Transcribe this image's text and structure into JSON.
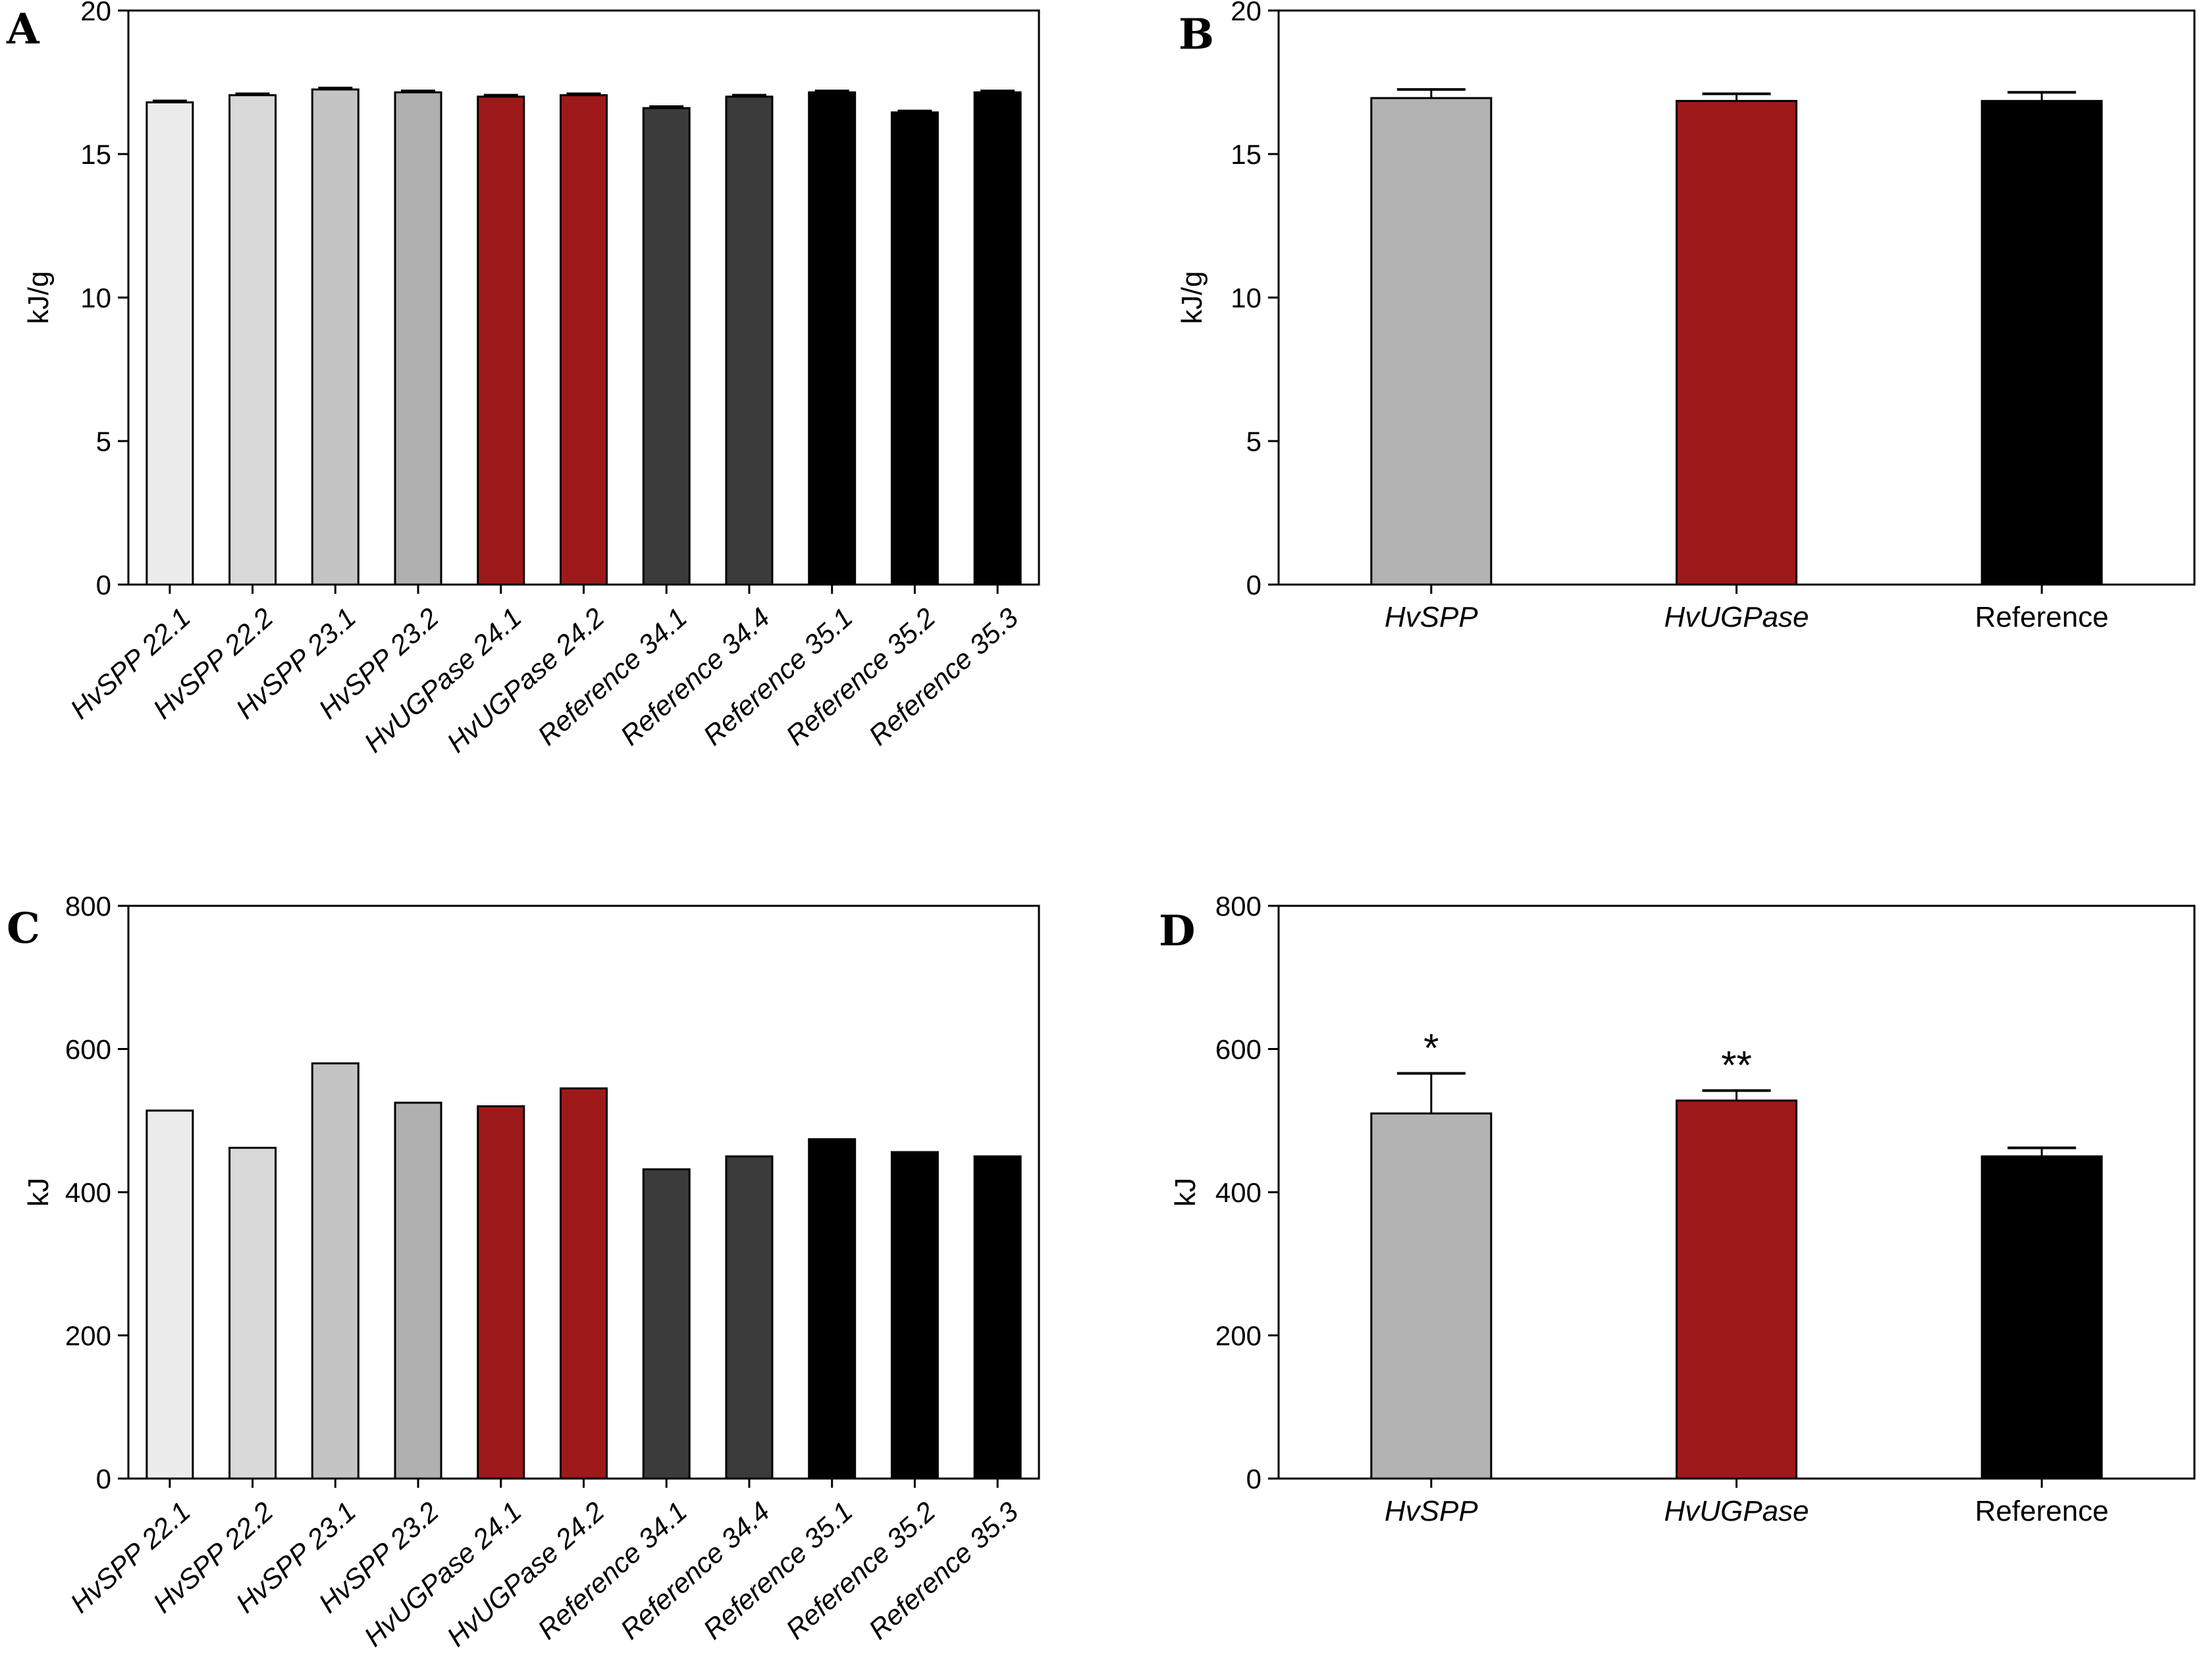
{
  "colors": {
    "hvspp_22_1": "#ececec",
    "hvspp_22_2": "#d9d9d9",
    "hvspp_23_1": "#c4c4c4",
    "hvspp_23_2": "#b0b0b0",
    "hvugpase": "#9e1a1a",
    "ref_34": "#3b3b3b",
    "ref_35": "#000000",
    "hvspp_group": "#b3b3b3"
  },
  "chart_data": [
    {
      "panel": "A",
      "type": "bar",
      "ylabel": "kJ/g",
      "ylim": [
        0,
        20
      ],
      "yticks": [
        "0",
        "5",
        "10",
        "15",
        "20"
      ],
      "categories": [
        {
          "prefix": "HvSPP",
          "suffix": " 22.1",
          "italic": true
        },
        {
          "prefix": "HvSPP",
          "suffix": " 22.2",
          "italic": true
        },
        {
          "prefix": "HvSPP",
          "suffix": " 23.1",
          "italic": true
        },
        {
          "prefix": "HvSPP",
          "suffix": " 23.2",
          "italic": true
        },
        {
          "prefix": "HvUGPase",
          "suffix": " 24.1",
          "italic": true
        },
        {
          "prefix": "HvUGPase",
          "suffix": " 24.2",
          "italic": true
        },
        {
          "prefix": "Reference",
          "suffix": " 34.1",
          "italic": true
        },
        {
          "prefix": "Reference",
          "suffix": " 34.4",
          "italic": true
        },
        {
          "prefix": "Reference",
          "suffix": " 35.1",
          "italic": true
        },
        {
          "prefix": "Reference",
          "suffix": " 35.2",
          "italic": true
        },
        {
          "prefix": "Reference",
          "suffix": " 35.3",
          "italic": true
        }
      ],
      "values": [
        16.8,
        17.05,
        17.25,
        17.15,
        17.0,
        17.05,
        16.6,
        17.0,
        17.15,
        16.45,
        17.15
      ],
      "errors": [
        0.05,
        0.05,
        0.05,
        0.05,
        0.05,
        0.05,
        0.05,
        0.05,
        0.05,
        0.05,
        0.05
      ],
      "colors": [
        "#ececec",
        "#d9d9d9",
        "#c4c4c4",
        "#b0b0b0",
        "#9e1a1a",
        "#9e1a1a",
        "#3b3b3b",
        "#3b3b3b",
        "#000000",
        "#000000",
        "#000000"
      ]
    },
    {
      "panel": "B",
      "type": "bar",
      "ylabel": "kJ/g",
      "ylim": [
        0,
        20
      ],
      "yticks": [
        "0",
        "5",
        "10",
        "15",
        "20"
      ],
      "categories": [
        {
          "prefix": "HvSPP",
          "suffix": "",
          "italic": true
        },
        {
          "prefix": "HvUGPase",
          "suffix": "",
          "italic": true
        },
        {
          "prefix": "Reference",
          "suffix": "",
          "italic": false
        }
      ],
      "values": [
        16.95,
        16.85,
        16.85
      ],
      "errors": [
        0.3,
        0.25,
        0.3
      ],
      "colors": [
        "#b3b3b3",
        "#9e1a1a",
        "#000000"
      ]
    },
    {
      "panel": "C",
      "type": "bar",
      "ylabel": "kJ",
      "ylim": [
        0,
        800
      ],
      "yticks": [
        "0",
        "200",
        "400",
        "600",
        "800"
      ],
      "categories": [
        {
          "prefix": "HvSPP",
          "suffix": " 22.1",
          "italic": true
        },
        {
          "prefix": "HvSPP",
          "suffix": " 22.2",
          "italic": true
        },
        {
          "prefix": "HvSPP",
          "suffix": " 23.1",
          "italic": true
        },
        {
          "prefix": "HvSPP",
          "suffix": " 23.2",
          "italic": true
        },
        {
          "prefix": "HvUGPase",
          "suffix": " 24.1",
          "italic": true
        },
        {
          "prefix": "HvUGPase",
          "suffix": " 24.2",
          "italic": true
        },
        {
          "prefix": "Reference",
          "suffix": " 34.1",
          "italic": true
        },
        {
          "prefix": "Reference",
          "suffix": " 34.4",
          "italic": true
        },
        {
          "prefix": "Reference",
          "suffix": " 35.1",
          "italic": true
        },
        {
          "prefix": "Reference",
          "suffix": " 35.2",
          "italic": true
        },
        {
          "prefix": "Reference",
          "suffix": " 35.3",
          "italic": true
        }
      ],
      "values": [
        514,
        462,
        580,
        525,
        520,
        545,
        432,
        450,
        474,
        456,
        450
      ],
      "colors": [
        "#ececec",
        "#d9d9d9",
        "#c4c4c4",
        "#b0b0b0",
        "#9e1a1a",
        "#9e1a1a",
        "#3b3b3b",
        "#3b3b3b",
        "#000000",
        "#000000",
        "#000000"
      ]
    },
    {
      "panel": "D",
      "type": "bar",
      "ylabel": "kJ",
      "ylim": [
        0,
        800
      ],
      "yticks": [
        "0",
        "200",
        "400",
        "600",
        "800"
      ],
      "categories": [
        {
          "prefix": "HvSPP",
          "suffix": "",
          "italic": true
        },
        {
          "prefix": "HvUGPase",
          "suffix": "",
          "italic": true
        },
        {
          "prefix": "Reference",
          "suffix": "",
          "italic": false
        }
      ],
      "values": [
        510,
        528,
        450
      ],
      "errors": [
        56,
        14,
        12
      ],
      "significance": [
        "*",
        "**",
        ""
      ],
      "colors": [
        "#b3b3b3",
        "#9e1a1a",
        "#000000"
      ]
    }
  ]
}
